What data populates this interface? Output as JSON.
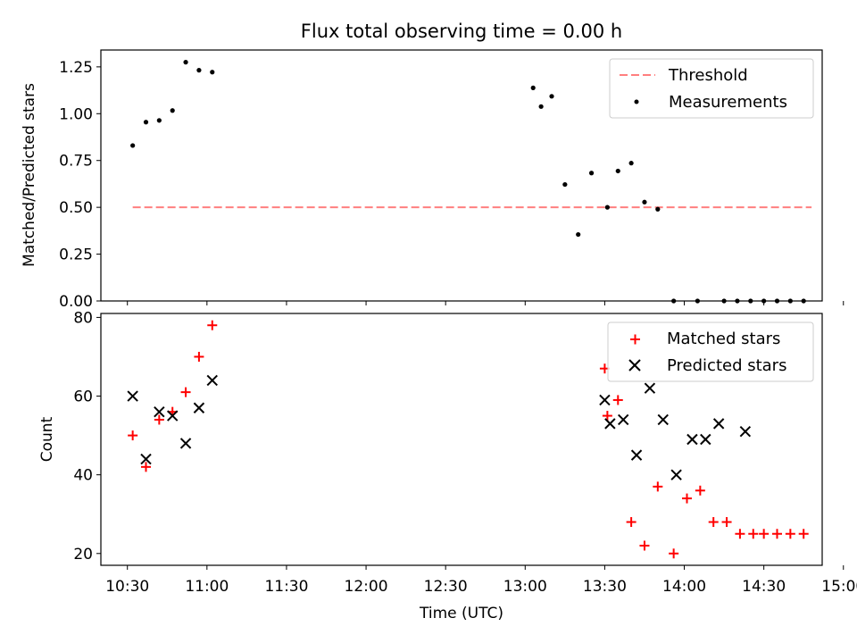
{
  "title": "Flux total observing time = 0.00 h",
  "colors": {
    "threshold": "#ff7f7f",
    "measurement": "#000000",
    "matched": "#ff0000",
    "predicted": "#000000"
  },
  "chart_data": [
    {
      "type": "scatter",
      "name": "ratio",
      "ylabel": "Matched/Predicted stars",
      "ylim": [
        0.0,
        1.34
      ],
      "yticks": [
        0.0,
        0.25,
        0.5,
        0.75,
        1.0,
        1.25
      ],
      "ytick_labels": [
        "0.00",
        "0.25",
        "0.50",
        "0.75",
        "1.00",
        "1.25"
      ],
      "legend": {
        "position": "top-right",
        "entries": [
          "Threshold",
          "Measurements"
        ]
      },
      "threshold": {
        "label": "Threshold",
        "value": 0.5,
        "x_start": 632,
        "x_end": 888
      },
      "series": [
        {
          "name": "Measurements",
          "marker": "dot",
          "x": [
            632,
            637,
            642,
            647,
            652,
            657,
            662,
            783,
            786,
            790,
            795,
            800,
            805,
            811,
            815,
            820,
            825,
            830,
            836,
            845,
            855,
            860,
            865,
            870,
            875,
            880,
            885
          ],
          "y": [
            0.83,
            0.955,
            0.964,
            1.017,
            1.275,
            1.232,
            1.222,
            1.138,
            1.038,
            1.093,
            0.622,
            0.355,
            0.683,
            0.5,
            0.694,
            0.736,
            0.528,
            0.49,
            0.0,
            0.0,
            0.0,
            0.0,
            0.0,
            0.0,
            0.0,
            0.0,
            0.0
          ]
        }
      ]
    },
    {
      "type": "scatter",
      "name": "counts",
      "xlabel": "Time (UTC)",
      "ylabel": "Count",
      "xlim": [
        620,
        892
      ],
      "ylim": [
        17,
        81
      ],
      "xticks": [
        630,
        660,
        690,
        720,
        750,
        780,
        810,
        840,
        870,
        900
      ],
      "xtick_labels": [
        "10:30",
        "11:00",
        "11:30",
        "12:00",
        "12:30",
        "13:00",
        "13:30",
        "14:00",
        "14:30",
        "15:00"
      ],
      "yticks": [
        20,
        40,
        60,
        80
      ],
      "ytick_labels": [
        "20",
        "40",
        "60",
        "80"
      ],
      "legend": {
        "position": "top-right",
        "entries": [
          "Matched stars",
          "Predicted stars"
        ]
      },
      "series": [
        {
          "name": "Matched stars",
          "marker": "plus",
          "x": [
            632,
            637,
            642,
            647,
            652,
            657,
            662,
            810,
            811,
            815,
            820,
            825,
            830,
            836,
            841,
            846,
            851,
            856,
            861,
            866,
            870,
            875,
            880,
            885
          ],
          "y": [
            50,
            42,
            54,
            56,
            61,
            70,
            78,
            67,
            55,
            59,
            28,
            22,
            37,
            20,
            34,
            36,
            28,
            28,
            25,
            25,
            25,
            25,
            25,
            25
          ]
        },
        {
          "name": "Predicted stars",
          "marker": "x",
          "x": [
            632,
            637,
            642,
            647,
            652,
            657,
            662,
            810,
            812,
            817,
            822,
            827,
            832,
            837,
            843,
            848,
            853,
            863
          ],
          "y": [
            60,
            44,
            56,
            55,
            48,
            57,
            64,
            59,
            53,
            54,
            45,
            62,
            54,
            40,
            49,
            49,
            53,
            51
          ]
        }
      ]
    }
  ]
}
